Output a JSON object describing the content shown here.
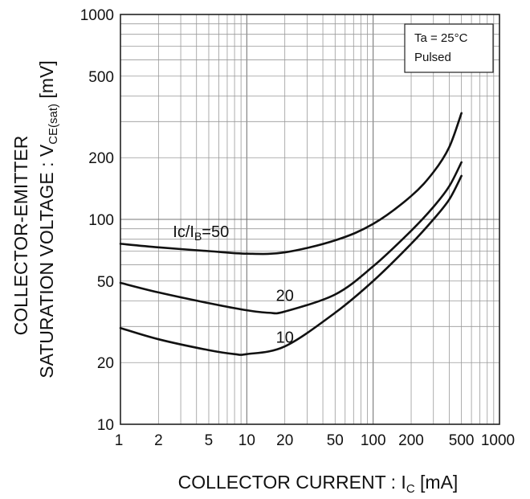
{
  "chart_data": {
    "type": "line",
    "x_scale": "log",
    "y_scale": "log",
    "xlim": [
      1,
      1000
    ],
    "ylim": [
      10,
      1000
    ],
    "grid": true,
    "x_ticks": [
      {
        "value": 1,
        "label": "1"
      },
      {
        "value": 2,
        "label": "2"
      },
      {
        "value": 5,
        "label": "5"
      },
      {
        "value": 10,
        "label": "10"
      },
      {
        "value": 20,
        "label": "20"
      },
      {
        "value": 50,
        "label": "50"
      },
      {
        "value": 100,
        "label": "100"
      },
      {
        "value": 200,
        "label": "200"
      },
      {
        "value": 500,
        "label": "500"
      },
      {
        "value": 1000,
        "label": "1000"
      }
    ],
    "y_ticks": [
      {
        "value": 10,
        "label": "10"
      },
      {
        "value": 20,
        "label": "20"
      },
      {
        "value": 50,
        "label": "50"
      },
      {
        "value": 100,
        "label": "100"
      },
      {
        "value": 200,
        "label": "200"
      },
      {
        "value": 500,
        "label": "500"
      },
      {
        "value": 1000,
        "label": "1000"
      }
    ],
    "xlabel": {
      "main": "COLLECTOR CURRENT : I",
      "sub": "C",
      "unit": " [mA]"
    },
    "ylabel": {
      "line1": "COLLECTOR-EMITTER",
      "line2_main": "SATURATION VOLTAGE : V",
      "line2_sub": "CE(sat)",
      "line2_unit": " [mV]"
    },
    "legend": {
      "position": "top-right",
      "line1": "Ta = 25°C",
      "line2": "Pulsed"
    },
    "series": [
      {
        "id": "ratio-50",
        "label": {
          "main": "Ic/I",
          "sub": "B",
          "suffix": "=50",
          "at_x": 2.6,
          "at_y": 82
        },
        "points": [
          [
            1,
            76
          ],
          [
            2,
            73
          ],
          [
            5,
            70
          ],
          [
            10,
            68
          ],
          [
            20,
            69
          ],
          [
            50,
            79
          ],
          [
            100,
            95
          ],
          [
            200,
            130
          ],
          [
            300,
            170
          ],
          [
            400,
            225
          ],
          [
            500,
            330
          ]
        ]
      },
      {
        "id": "ratio-20",
        "label": {
          "main": "20",
          "at_x": 17,
          "at_y": 40
        },
        "points": [
          [
            1,
            49
          ],
          [
            2,
            44
          ],
          [
            5,
            39
          ],
          [
            10,
            36
          ],
          [
            15,
            35
          ],
          [
            20,
            35.5
          ],
          [
            50,
            43
          ],
          [
            100,
            59
          ],
          [
            200,
            88
          ],
          [
            300,
            115
          ],
          [
            400,
            145
          ],
          [
            500,
            190
          ]
        ]
      },
      {
        "id": "ratio-10",
        "label": {
          "main": "10",
          "at_x": 17,
          "at_y": 25
        },
        "points": [
          [
            1,
            29.5
          ],
          [
            2,
            26
          ],
          [
            5,
            23
          ],
          [
            8,
            22
          ],
          [
            10,
            22
          ],
          [
            20,
            24
          ],
          [
            50,
            35
          ],
          [
            100,
            50
          ],
          [
            200,
            76
          ],
          [
            300,
            100
          ],
          [
            400,
            125
          ],
          [
            500,
            163
          ]
        ]
      }
    ]
  }
}
